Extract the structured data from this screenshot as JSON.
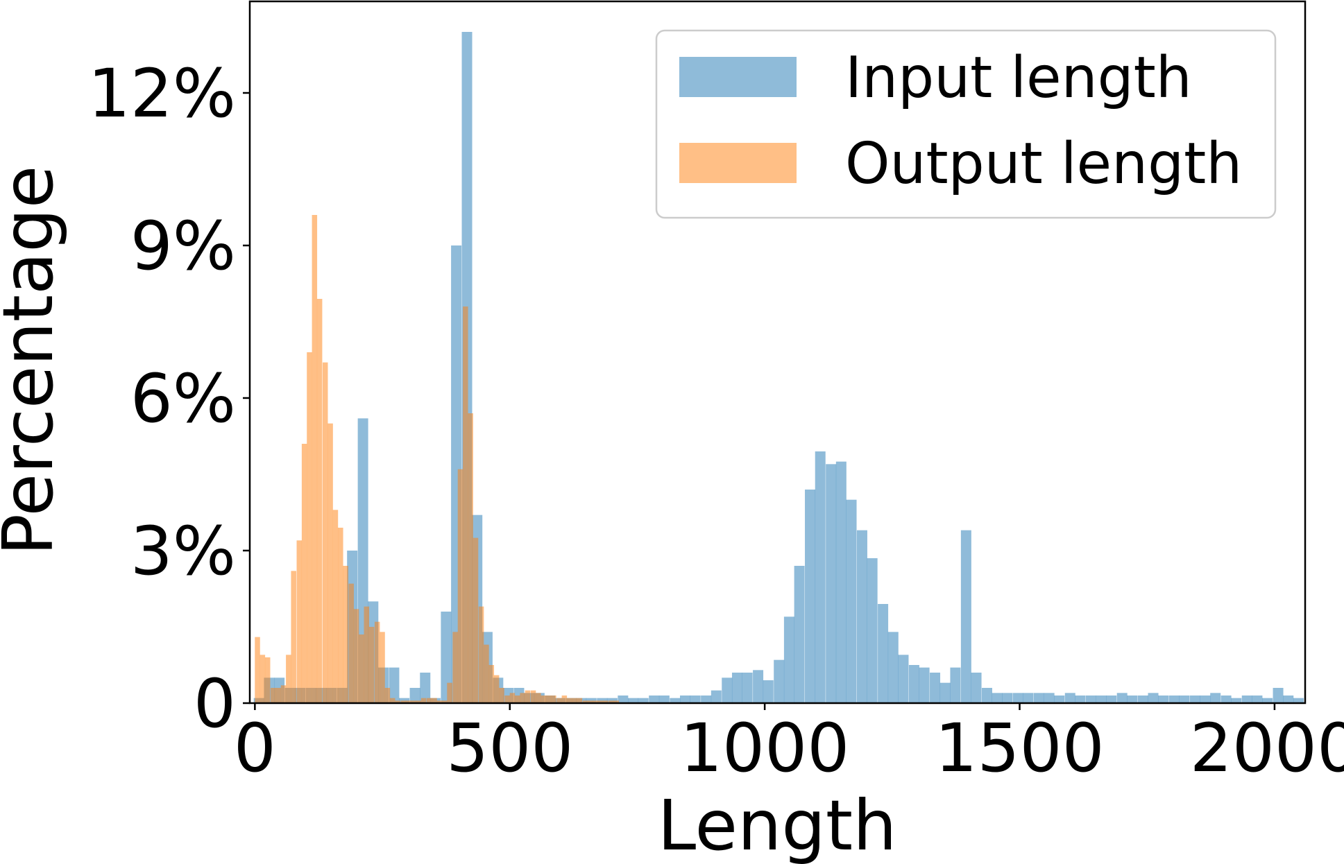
{
  "chart_data": {
    "type": "bar",
    "title": "",
    "xlabel": "Length",
    "ylabel": "Percentage",
    "xlim": [
      -10,
      2060
    ],
    "ylim": [
      0,
      13.8
    ],
    "xticks": [
      0,
      500,
      1000,
      1500,
      2000
    ],
    "xtick_labels": [
      "0",
      "500",
      "1000",
      "1500",
      "2000"
    ],
    "yticks": [
      0,
      3,
      6,
      9,
      12
    ],
    "ytick_labels": [
      "0",
      "3%",
      "6%",
      "9%",
      "12%"
    ],
    "legend_position": "top-right",
    "grid": false,
    "series": [
      {
        "name": "Input length",
        "color": "#1f77b4",
        "opacity": 0.5,
        "bin_width": 20.4,
        "x": [
          8,
          28,
          48,
          69,
          89,
          110,
          130,
          150,
          171,
          191,
          212,
          232,
          252,
          273,
          293,
          314,
          334,
          354,
          375,
          395,
          416,
          436,
          456,
          477,
          497,
          518,
          538,
          558,
          579,
          599,
          620,
          640,
          660,
          681,
          701,
          722,
          742,
          762,
          783,
          803,
          824,
          844,
          864,
          885,
          905,
          926,
          946,
          966,
          987,
          1007,
          1028,
          1048,
          1068,
          1089,
          1109,
          1130,
          1150,
          1170,
          1191,
          1211,
          1232,
          1252,
          1272,
          1293,
          1313,
          1334,
          1354,
          1374,
          1395,
          1415,
          1436,
          1456,
          1476,
          1497,
          1517,
          1538,
          1558,
          1578,
          1599,
          1619,
          1640,
          1660,
          1680,
          1701,
          1721,
          1742,
          1762,
          1782,
          1803,
          1823,
          1844,
          1864,
          1884,
          1905,
          1925,
          1946,
          1966,
          1986,
          2007,
          2027,
          2047
        ],
        "values": [
          0.1,
          0.5,
          0.5,
          0.3,
          0.3,
          0.3,
          0.3,
          0.3,
          0.3,
          3.0,
          5.6,
          2.0,
          0.7,
          0.7,
          0.1,
          0.3,
          0.6,
          0.1,
          1.8,
          9.0,
          13.2,
          3.7,
          1.4,
          0.5,
          0.3,
          0.3,
          0.2,
          0.2,
          0.15,
          0.1,
          0.1,
          0.1,
          0.1,
          0.1,
          0.1,
          0.15,
          0.1,
          0.1,
          0.15,
          0.15,
          0.1,
          0.15,
          0.15,
          0.15,
          0.25,
          0.5,
          0.6,
          0.6,
          0.65,
          0.45,
          0.85,
          1.7,
          2.7,
          4.2,
          4.95,
          4.7,
          4.75,
          4.0,
          3.4,
          2.85,
          1.95,
          1.4,
          0.95,
          0.75,
          0.7,
          0.6,
          0.4,
          0.7,
          3.4,
          0.6,
          0.3,
          0.2,
          0.2,
          0.2,
          0.2,
          0.2,
          0.2,
          0.15,
          0.2,
          0.15,
          0.15,
          0.15,
          0.15,
          0.2,
          0.15,
          0.15,
          0.2,
          0.15,
          0.15,
          0.15,
          0.15,
          0.15,
          0.2,
          0.15,
          0.1,
          0.15,
          0.15,
          0.1,
          0.3,
          0.15,
          0.1
        ]
      },
      {
        "name": "Output length",
        "color": "#ff7f0e",
        "opacity": 0.5,
        "bin_width": 10.2,
        "x": [
          5,
          15,
          25,
          36,
          46,
          56,
          66,
          76,
          87,
          97,
          107,
          117,
          127,
          138,
          148,
          158,
          168,
          178,
          189,
          199,
          209,
          219,
          229,
          240,
          250,
          260,
          270,
          280,
          291,
          301,
          311,
          321,
          331,
          342,
          352,
          362,
          372,
          382,
          393,
          403,
          413,
          423,
          433,
          444,
          454,
          464,
          474,
          484,
          495,
          505,
          515,
          525,
          535,
          546,
          556,
          566,
          576,
          586,
          597,
          607,
          617,
          627,
          637,
          648,
          658,
          668,
          678,
          688,
          699,
          709
        ],
        "values": [
          1.3,
          0.95,
          0.9,
          0.3,
          0.3,
          0.35,
          0.95,
          2.6,
          3.2,
          5.1,
          6.9,
          9.6,
          7.95,
          6.7,
          5.5,
          3.8,
          3.45,
          2.7,
          2.35,
          1.85,
          1.35,
          1.9,
          1.5,
          1.6,
          1.4,
          0.3,
          0.1,
          0.05,
          0.05,
          0.05,
          0.05,
          0.05,
          0.1,
          0.1,
          0.1,
          0.05,
          0.05,
          0.4,
          1.4,
          4.6,
          7.8,
          5.7,
          3.25,
          1.9,
          1.15,
          0.75,
          0.55,
          0.3,
          0.15,
          0.2,
          0.15,
          0.2,
          0.25,
          0.25,
          0.2,
          0.15,
          0.15,
          0.15,
          0.1,
          0.15,
          0.1,
          0.1,
          0.1,
          0.05,
          0.05,
          0.05,
          0.05,
          0.05,
          0.05,
          0.05
        ]
      }
    ]
  }
}
